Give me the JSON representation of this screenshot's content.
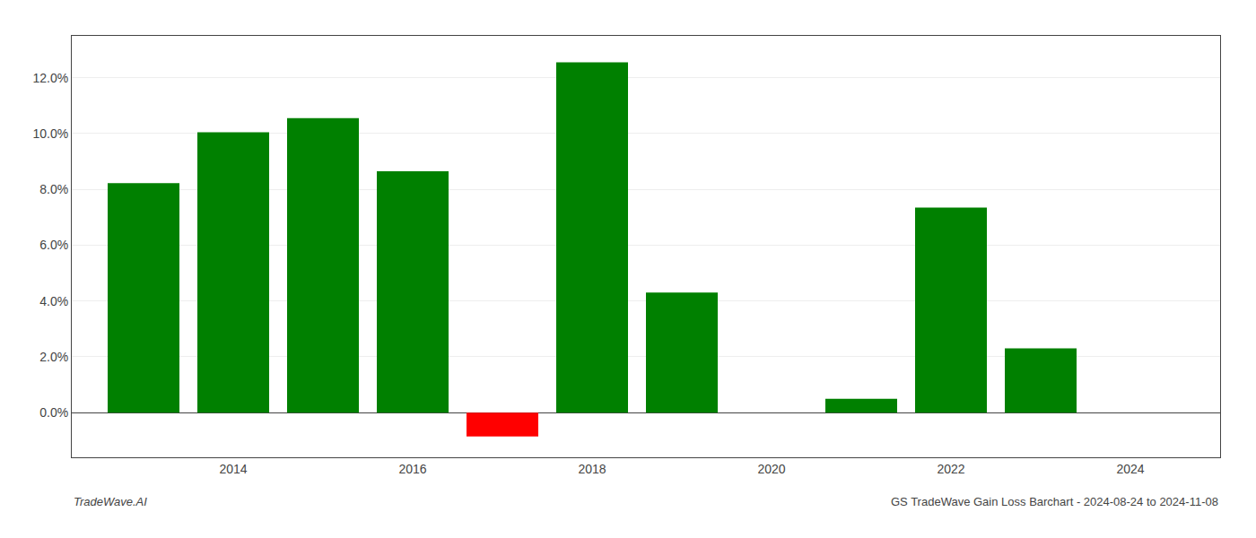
{
  "chart_data": {
    "type": "bar",
    "x": [
      2013,
      2014,
      2015,
      2016,
      2017,
      2018,
      2019,
      2021,
      2022,
      2023
    ],
    "values": [
      0.0822,
      0.1005,
      0.1055,
      0.0865,
      -0.0085,
      0.1255,
      0.043,
      0.005,
      0.0735,
      0.023
    ],
    "colors": [
      "#008000",
      "#008000",
      "#008000",
      "#008000",
      "#ff0000",
      "#008000",
      "#008000",
      "#008000",
      "#008000",
      "#008000"
    ],
    "xlim": [
      2012.2,
      2025.0
    ],
    "xticks": [
      2014,
      2016,
      2018,
      2020,
      2022,
      2024
    ],
    "ylim": [
      -0.016,
      0.135
    ],
    "yticks": [
      {
        "value": 0.0,
        "label": "0.0%"
      },
      {
        "value": 0.02,
        "label": "2.0%"
      },
      {
        "value": 0.04,
        "label": "4.0%"
      },
      {
        "value": 0.06,
        "label": "6.0%"
      },
      {
        "value": 0.08,
        "label": "8.0%"
      },
      {
        "value": 0.1,
        "label": "10.0%"
      },
      {
        "value": 0.12,
        "label": "12.0%"
      }
    ],
    "grid": "y",
    "annotations": [
      "TradeWave.AI",
      "GS TradeWave Gain Loss Barchart - 2024-08-24 to 2024-11-08"
    ]
  }
}
